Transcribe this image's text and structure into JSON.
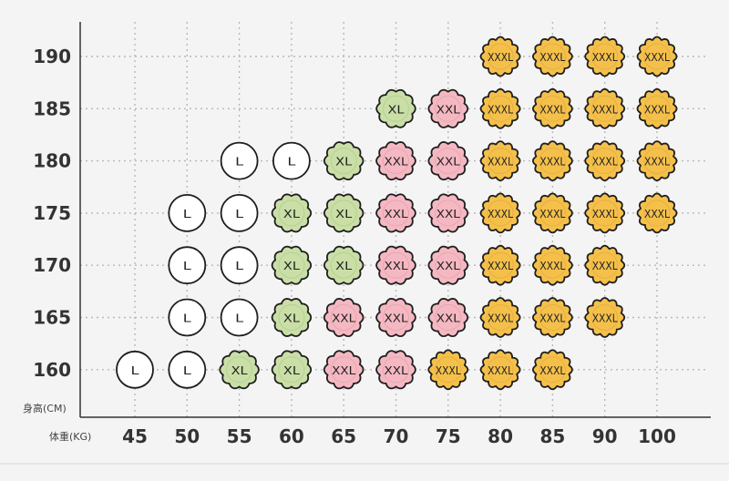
{
  "chart_data": {
    "type": "table",
    "title": "",
    "xlabel": "体重(KG)",
    "ylabel": "身高(CM)",
    "x_ticks": [
      45,
      50,
      55,
      60,
      65,
      70,
      75,
      80,
      85,
      90,
      100
    ],
    "y_ticks": [
      190,
      185,
      180,
      175,
      170,
      165,
      160
    ],
    "grid": true,
    "colors": {
      "L": "#ffffff",
      "XL": "#c9dfa6",
      "XXL": "#f5b8c2",
      "XXXL": "#f5c04a",
      "stroke": "#1e1e1e",
      "grid": "#b8b8b8",
      "axis": "#333333"
    },
    "cells": [
      {
        "height": 190,
        "weight": 80,
        "size": "XXXL"
      },
      {
        "height": 190,
        "weight": 85,
        "size": "XXXL"
      },
      {
        "height": 190,
        "weight": 90,
        "size": "XXXL"
      },
      {
        "height": 190,
        "weight": 100,
        "size": "XXXL"
      },
      {
        "height": 185,
        "weight": 70,
        "size": "XL"
      },
      {
        "height": 185,
        "weight": 75,
        "size": "XXL"
      },
      {
        "height": 185,
        "weight": 80,
        "size": "XXXL"
      },
      {
        "height": 185,
        "weight": 85,
        "size": "XXXL"
      },
      {
        "height": 185,
        "weight": 90,
        "size": "XXXL"
      },
      {
        "height": 185,
        "weight": 100,
        "size": "XXXL"
      },
      {
        "height": 180,
        "weight": 55,
        "size": "L"
      },
      {
        "height": 180,
        "weight": 60,
        "size": "L"
      },
      {
        "height": 180,
        "weight": 65,
        "size": "XL"
      },
      {
        "height": 180,
        "weight": 70,
        "size": "XXL"
      },
      {
        "height": 180,
        "weight": 75,
        "size": "XXL"
      },
      {
        "height": 180,
        "weight": 80,
        "size": "XXXL"
      },
      {
        "height": 180,
        "weight": 85,
        "size": "XXXL"
      },
      {
        "height": 180,
        "weight": 90,
        "size": "XXXL"
      },
      {
        "height": 180,
        "weight": 100,
        "size": "XXXL"
      },
      {
        "height": 175,
        "weight": 50,
        "size": "L"
      },
      {
        "height": 175,
        "weight": 55,
        "size": "L"
      },
      {
        "height": 175,
        "weight": 60,
        "size": "XL"
      },
      {
        "height": 175,
        "weight": 65,
        "size": "XL"
      },
      {
        "height": 175,
        "weight": 70,
        "size": "XXL"
      },
      {
        "height": 175,
        "weight": 75,
        "size": "XXL"
      },
      {
        "height": 175,
        "weight": 80,
        "size": "XXXL"
      },
      {
        "height": 175,
        "weight": 85,
        "size": "XXXL"
      },
      {
        "height": 175,
        "weight": 90,
        "size": "XXXL"
      },
      {
        "height": 175,
        "weight": 100,
        "size": "XXXL"
      },
      {
        "height": 170,
        "weight": 50,
        "size": "L"
      },
      {
        "height": 170,
        "weight": 55,
        "size": "L"
      },
      {
        "height": 170,
        "weight": 60,
        "size": "XL"
      },
      {
        "height": 170,
        "weight": 65,
        "size": "XL"
      },
      {
        "height": 170,
        "weight": 70,
        "size": "XXL"
      },
      {
        "height": 170,
        "weight": 75,
        "size": "XXL"
      },
      {
        "height": 170,
        "weight": 80,
        "size": "XXXL"
      },
      {
        "height": 170,
        "weight": 85,
        "size": "XXXL"
      },
      {
        "height": 170,
        "weight": 90,
        "size": "XXXL"
      },
      {
        "height": 165,
        "weight": 50,
        "size": "L"
      },
      {
        "height": 165,
        "weight": 55,
        "size": "L"
      },
      {
        "height": 165,
        "weight": 60,
        "size": "XL"
      },
      {
        "height": 165,
        "weight": 65,
        "size": "XXL"
      },
      {
        "height": 165,
        "weight": 70,
        "size": "XXL"
      },
      {
        "height": 165,
        "weight": 75,
        "size": "XXL"
      },
      {
        "height": 165,
        "weight": 80,
        "size": "XXXL"
      },
      {
        "height": 165,
        "weight": 85,
        "size": "XXXL"
      },
      {
        "height": 165,
        "weight": 90,
        "size": "XXXL"
      },
      {
        "height": 160,
        "weight": 45,
        "size": "L"
      },
      {
        "height": 160,
        "weight": 50,
        "size": "L"
      },
      {
        "height": 160,
        "weight": 55,
        "size": "XL"
      },
      {
        "height": 160,
        "weight": 60,
        "size": "XL"
      },
      {
        "height": 160,
        "weight": 65,
        "size": "XXL"
      },
      {
        "height": 160,
        "weight": 70,
        "size": "XXL"
      },
      {
        "height": 160,
        "weight": 75,
        "size": "XXXL"
      },
      {
        "height": 160,
        "weight": 80,
        "size": "XXXL"
      },
      {
        "height": 160,
        "weight": 85,
        "size": "XXXL"
      }
    ]
  }
}
